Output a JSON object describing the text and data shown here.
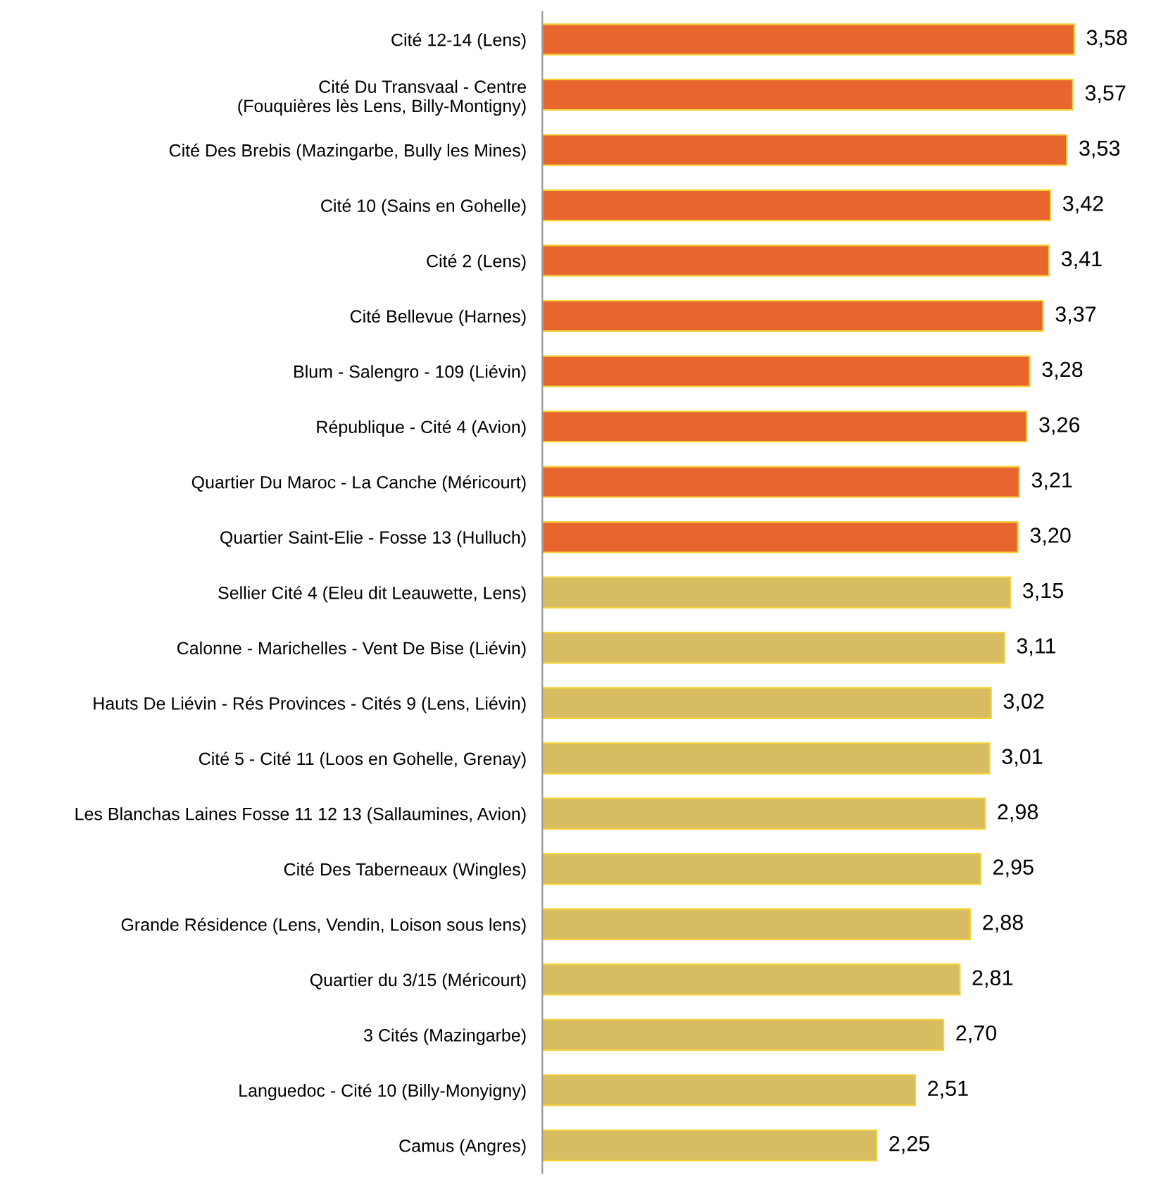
{
  "chart_data": {
    "type": "bar",
    "orientation": "horizontal",
    "categories": [
      "Cité 12-14 (Lens)",
      "Cité Du Transvaal - Centre\n(Fouquières lès Lens, Billy-Montigny)",
      "Cité Des Brebis (Mazingarbe, Bully les Mines)",
      "Cité 10 (Sains en Gohelle)",
      "Cité 2 (Lens)",
      "Cité Bellevue (Harnes)",
      "Blum - Salengro - 109 (Liévin)",
      "République - Cité 4 (Avion)",
      "Quartier Du Maroc - La Canche (Méricourt)",
      "Quartier Saint-Elie - Fosse 13 (Hulluch)",
      "Sellier Cité 4 (Eleu dit Leauwette, Lens)",
      "Calonne - Marichelles - Vent De Bise (Liévin)",
      "Hauts De Liévin - Rés Provinces - Cités 9 (Lens, Liévin)",
      "Cité 5 - Cité 11 (Loos en Gohelle, Grenay)",
      "Les Blanchas Laines Fosse 11 12 13 (Sallaumines, Avion)",
      "Cité Des Taberneaux (Wingles)",
      "Grande Résidence (Lens, Vendin, Loison sous lens)",
      "Quartier du 3/15 (Méricourt)",
      "3 Cités (Mazingarbe)",
      "Languedoc - Cité 10 (Billy-Monyigny)",
      "Camus (Angres)"
    ],
    "values": [
      3.58,
      3.57,
      3.53,
      3.42,
      3.41,
      3.37,
      3.28,
      3.26,
      3.21,
      3.2,
      3.15,
      3.11,
      3.02,
      3.01,
      2.98,
      2.95,
      2.88,
      2.81,
      2.7,
      2.51,
      2.25
    ],
    "value_labels": [
      "3,58",
      "3,57",
      "3,53",
      "3,42",
      "3,41",
      "3,37",
      "3,28",
      "3,26",
      "3,21",
      "3,20",
      "3,15",
      "3,11",
      "3,02",
      "3,01",
      "2,98",
      "2,95",
      "2,88",
      "2,81",
      "2,70",
      "2,51",
      "2,25"
    ],
    "colors": [
      "#e8662e",
      "#e8662e",
      "#e8662e",
      "#e8662e",
      "#e8662e",
      "#e8662e",
      "#e8662e",
      "#e8662e",
      "#e8662e",
      "#e8662e",
      "#d8bc62",
      "#d8bc62",
      "#d8bc62",
      "#d8bc62",
      "#d8bc62",
      "#d8bc62",
      "#d8bc62",
      "#d8bc62",
      "#d8bc62",
      "#d8bc62",
      "#d8bc62"
    ],
    "grid": false,
    "legend": false
  }
}
